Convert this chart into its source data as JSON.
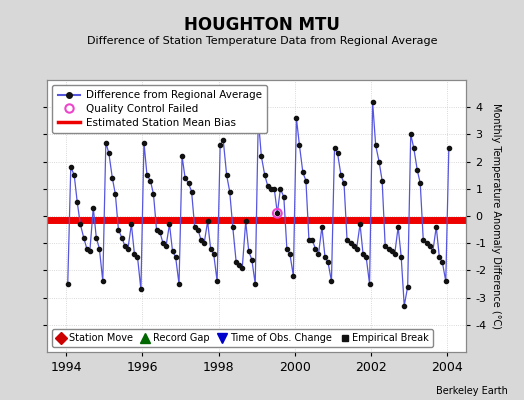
{
  "title": "HOUGHTON MTU",
  "subtitle": "Difference of Station Temperature Data from Regional Average",
  "ylabel": "Monthly Temperature Anomaly Difference (°C)",
  "xlabel_years": [
    1994,
    1996,
    1998,
    2000,
    2002,
    2004
  ],
  "xlim": [
    1993.5,
    2004.5
  ],
  "ylim": [
    -5,
    5
  ],
  "yticks": [
    -4,
    -3,
    -2,
    -1,
    0,
    1,
    2,
    3,
    4
  ],
  "bias_line_y": -0.15,
  "bias_line_color": "#ee0000",
  "line_color": "#5555dd",
  "marker_color": "#111111",
  "plot_bg_color": "#ffffff",
  "fig_bg_color": "#d8d8d8",
  "grid_color": "#cccccc",
  "attribution": "Berkeley Earth",
  "qc_x": 1999.54,
  "qc_y": 0.1,
  "data_x": [
    1994.04,
    1994.12,
    1994.21,
    1994.29,
    1994.37,
    1994.46,
    1994.54,
    1994.62,
    1994.71,
    1994.79,
    1994.87,
    1994.96,
    1995.04,
    1995.12,
    1995.21,
    1995.29,
    1995.37,
    1995.46,
    1995.54,
    1995.62,
    1995.71,
    1995.79,
    1995.87,
    1995.96,
    1996.04,
    1996.12,
    1996.21,
    1996.29,
    1996.37,
    1996.46,
    1996.54,
    1996.62,
    1996.71,
    1996.79,
    1996.87,
    1996.96,
    1997.04,
    1997.12,
    1997.21,
    1997.29,
    1997.37,
    1997.46,
    1997.54,
    1997.62,
    1997.71,
    1997.79,
    1997.87,
    1997.96,
    1998.04,
    1998.12,
    1998.21,
    1998.29,
    1998.37,
    1998.46,
    1998.54,
    1998.62,
    1998.71,
    1998.79,
    1998.87,
    1998.96,
    1999.04,
    1999.12,
    1999.21,
    1999.29,
    1999.37,
    1999.46,
    1999.54,
    1999.62,
    1999.71,
    1999.79,
    1999.87,
    1999.96,
    2000.04,
    2000.12,
    2000.21,
    2000.29,
    2000.37,
    2000.46,
    2000.54,
    2000.62,
    2000.71,
    2000.79,
    2000.87,
    2000.96,
    2001.04,
    2001.12,
    2001.21,
    2001.29,
    2001.37,
    2001.46,
    2001.54,
    2001.62,
    2001.71,
    2001.79,
    2001.87,
    2001.96,
    2002.04,
    2002.12,
    2002.21,
    2002.29,
    2002.37,
    2002.46,
    2002.54,
    2002.62,
    2002.71,
    2002.79,
    2002.87,
    2002.96,
    2003.04,
    2003.12,
    2003.21,
    2003.29,
    2003.37,
    2003.46,
    2003.54,
    2003.62,
    2003.71,
    2003.79,
    2003.87,
    2003.96,
    2004.04
  ],
  "data_y": [
    -2.5,
    1.8,
    1.5,
    0.5,
    -0.3,
    -0.8,
    -1.2,
    -1.3,
    0.3,
    -0.8,
    -1.2,
    -2.4,
    2.7,
    2.3,
    1.4,
    0.8,
    -0.5,
    -0.8,
    -1.1,
    -1.2,
    -0.3,
    -1.4,
    -1.5,
    -2.7,
    2.7,
    1.5,
    1.3,
    0.8,
    -0.5,
    -0.6,
    -1.0,
    -1.1,
    -0.3,
    -1.3,
    -1.5,
    -2.5,
    2.2,
    1.4,
    1.2,
    0.9,
    -0.4,
    -0.5,
    -0.9,
    -1.0,
    -0.2,
    -1.2,
    -1.4,
    -2.4,
    2.6,
    2.8,
    1.5,
    0.9,
    -0.4,
    -1.7,
    -1.8,
    -1.9,
    -0.2,
    -1.3,
    -1.6,
    -2.5,
    3.6,
    2.2,
    1.5,
    1.1,
    1.0,
    1.0,
    0.1,
    1.0,
    0.7,
    -1.2,
    -1.4,
    -2.2,
    3.6,
    2.6,
    1.6,
    1.3,
    -0.9,
    -0.9,
    -1.2,
    -1.4,
    -0.4,
    -1.5,
    -1.7,
    -2.4,
    2.5,
    2.3,
    1.5,
    1.2,
    -0.9,
    -1.0,
    -1.1,
    -1.2,
    -0.3,
    -1.4,
    -1.5,
    -2.5,
    4.2,
    2.6,
    2.0,
    1.3,
    -1.1,
    -1.2,
    -1.3,
    -1.4,
    -0.4,
    -1.5,
    -3.3,
    -2.6,
    3.0,
    2.5,
    1.7,
    1.2,
    -0.9,
    -1.0,
    -1.1,
    -1.3,
    -0.4,
    -1.5,
    -1.7,
    -2.4,
    2.5
  ]
}
